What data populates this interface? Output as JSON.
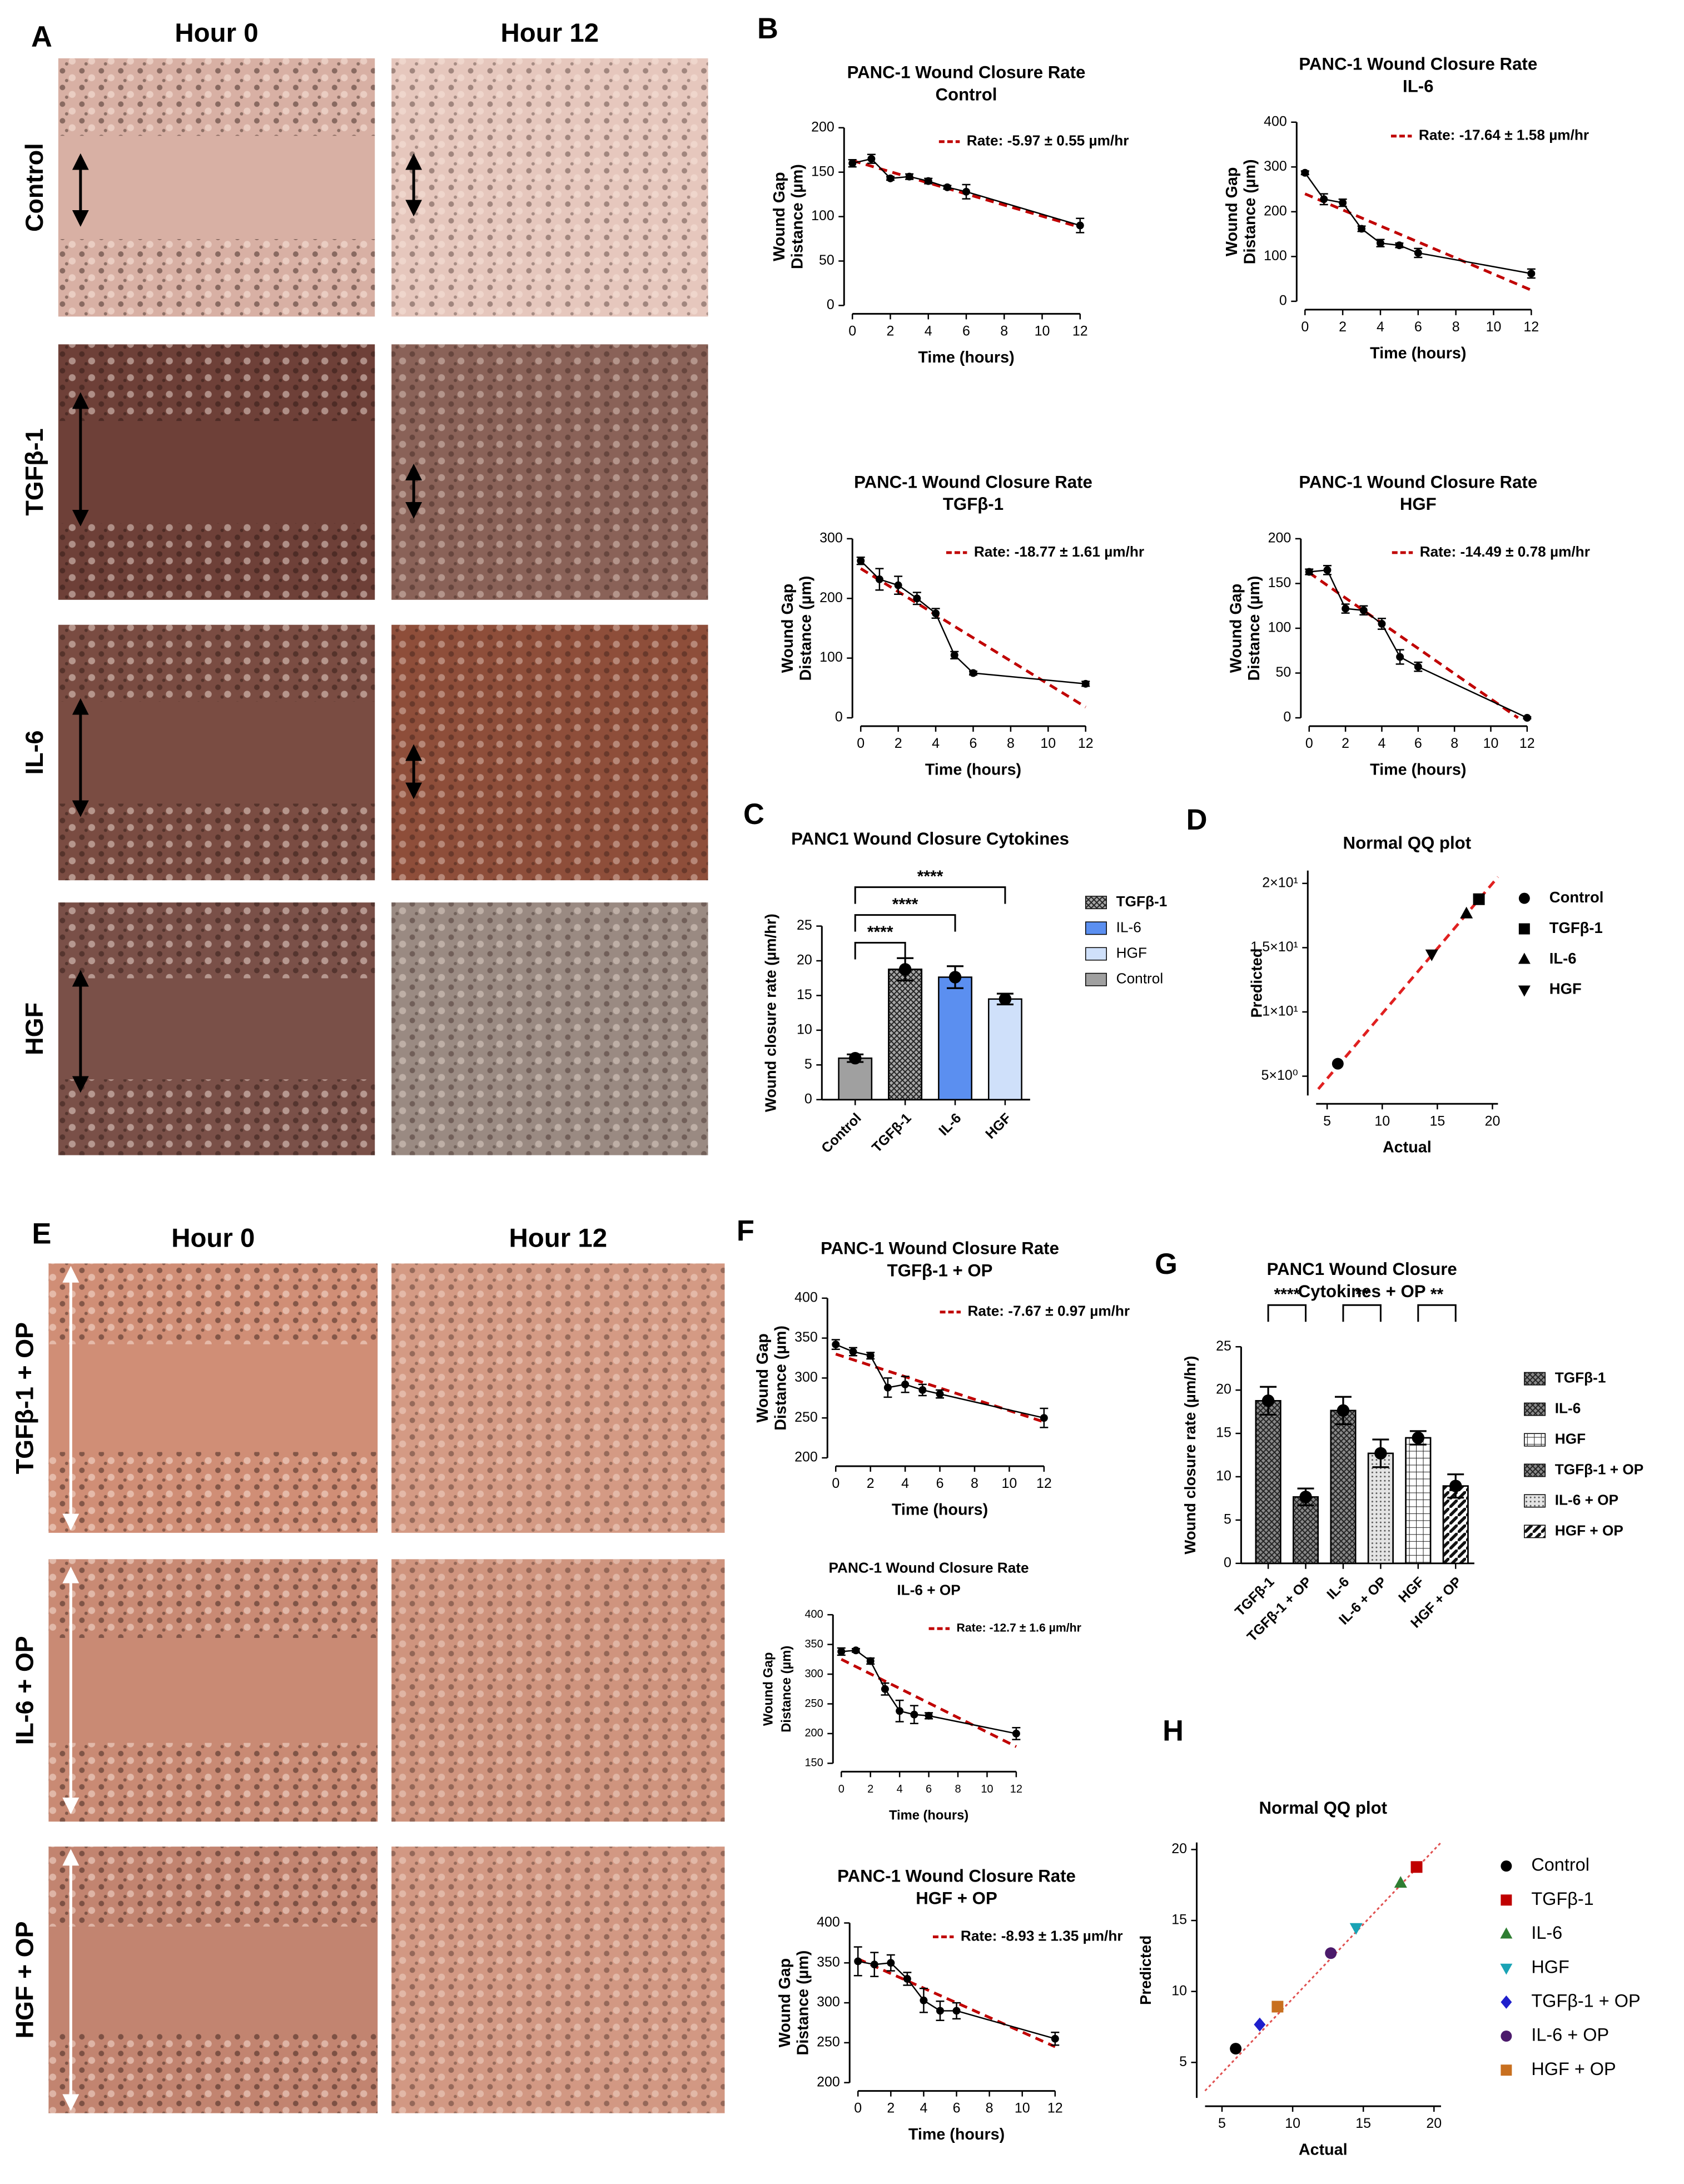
{
  "figure": {
    "panel_labels": [
      "A",
      "B",
      "C",
      "D",
      "E",
      "F",
      "G",
      "H"
    ],
    "panel_a": {
      "columns": [
        "Hour 0",
        "Hour 12"
      ],
      "rows": [
        "Control",
        "TGFβ-1",
        "IL-6",
        "HGF"
      ]
    },
    "panel_e": {
      "columns": [
        "Hour 0",
        "Hour 12"
      ],
      "rows": [
        "TGFβ-1 + OP",
        "IL-6 + OP",
        "HGF + OP"
      ]
    }
  },
  "chart_data": [
    {
      "type": "line",
      "title": "PANC-1 Wound Closure Rate",
      "subtitle": "Control",
      "x": [
        0,
        1,
        2,
        3,
        4,
        5,
        6,
        12
      ],
      "values": [
        160,
        165,
        143,
        145,
        140,
        133,
        128,
        90
      ],
      "errors": [
        4,
        5,
        2,
        3,
        3,
        2,
        8,
        8
      ],
      "color": "#000000",
      "fit": {
        "x": [
          0,
          12
        ],
        "values": [
          163,
          88
        ]
      },
      "fit_color": "#c00000",
      "annotation": "Rate: -5.97 ± 0.55 µm/hr",
      "xlabel": "Time (hours)",
      "ylabel": [
        "Wound Gap",
        "Distance (µm)"
      ],
      "xlim": [
        0,
        12
      ],
      "xticks": [
        0,
        2,
        4,
        6,
        8,
        10,
        12
      ],
      "ylim": [
        0,
        200
      ],
      "yticks": [
        0,
        50,
        100,
        150,
        200
      ]
    },
    {
      "type": "line",
      "title": "PANC-1 Wound Closure Rate",
      "subtitle": "IL-6",
      "x": [
        0,
        1,
        2,
        3,
        4,
        5,
        6,
        12
      ],
      "values": [
        287,
        228,
        220,
        162,
        130,
        125,
        108,
        62
      ],
      "errors": [
        4,
        12,
        8,
        6,
        8,
        5,
        10,
        10
      ],
      "color": "#000000",
      "fit": {
        "x": [
          0,
          12
        ],
        "values": [
          240,
          25
        ]
      },
      "fit_color": "#c00000",
      "annotation": "Rate: -17.64 ± 1.58 µm/hr",
      "xlabel": "Time (hours)",
      "ylabel": [
        "Wound Gap",
        "Distance (µm)"
      ],
      "xlim": [
        0,
        12
      ],
      "xticks": [
        0,
        2,
        4,
        6,
        8,
        10,
        12
      ],
      "ylim": [
        0,
        400
      ],
      "yticks": [
        0,
        100,
        200,
        300,
        400
      ]
    },
    {
      "type": "line",
      "title": "PANC-1 Wound Closure Rate",
      "subtitle": "TGFβ-1",
      "x": [
        0,
        1,
        2,
        3,
        4,
        5,
        6,
        12
      ],
      "values": [
        263,
        232,
        222,
        200,
        175,
        105,
        75,
        57
      ],
      "errors": [
        6,
        18,
        15,
        10,
        8,
        6,
        3,
        4
      ],
      "color": "#000000",
      "fit": {
        "x": [
          0,
          12
        ],
        "values": [
          250,
          18
        ]
      },
      "fit_color": "#c00000",
      "annotation": "Rate: -18.77 ± 1.61 µm/hr",
      "xlabel": "Time (hours)",
      "ylabel": [
        "Wound Gap",
        "Distance (µm)"
      ],
      "xlim": [
        0,
        12
      ],
      "xticks": [
        0,
        2,
        4,
        6,
        8,
        10,
        12
      ],
      "ylim": [
        0,
        300
      ],
      "yticks": [
        0,
        100,
        200,
        300
      ]
    },
    {
      "type": "line",
      "title": "PANC-1 Wound Closure Rate",
      "subtitle": "HGF",
      "x": [
        0,
        1,
        2,
        3,
        4,
        5,
        6,
        12
      ],
      "values": [
        163,
        165,
        122,
        120,
        105,
        68,
        57,
        0
      ],
      "errors": [
        3,
        5,
        5,
        5,
        6,
        8,
        5,
        1
      ],
      "color": "#000000",
      "fit": {
        "x": [
          0,
          11.5
        ],
        "values": [
          162,
          0
        ]
      },
      "fit_color": "#c00000",
      "annotation": "Rate: -14.49 ± 0.78 µm/hr",
      "xlabel": "Time (hours)",
      "ylabel": [
        "Wound Gap",
        "Distance (µm)"
      ],
      "xlim": [
        0,
        12
      ],
      "xticks": [
        0,
        2,
        4,
        6,
        8,
        10,
        12
      ],
      "ylim": [
        0,
        200
      ],
      "yticks": [
        0,
        50,
        100,
        150,
        200
      ]
    },
    {
      "type": "bar",
      "title": "PANC1 Wound Closure Cytokines",
      "categories": [
        "Control",
        "TGFβ-1",
        "IL-6",
        "HGF"
      ],
      "values": [
        5.97,
        18.77,
        17.64,
        14.49
      ],
      "errors": [
        0.55,
        1.61,
        1.58,
        0.78
      ],
      "colors": [
        "#a0a0a0",
        "#a8a8a8",
        "#5b8ff0",
        "#cfe0fa"
      ],
      "patterns": [
        "solid",
        "crosshatch",
        "solid",
        "solid"
      ],
      "legend": [
        "TGFβ-1",
        "IL-6",
        "HGF",
        "Control"
      ],
      "significance": [
        {
          "from": 0,
          "to": 1,
          "label": "****"
        },
        {
          "from": 0,
          "to": 2,
          "label": "****"
        },
        {
          "from": 0,
          "to": 3,
          "label": "****"
        }
      ],
      "ylabel": "Wound closure rate (µm/hr)",
      "ylim": [
        0,
        25
      ],
      "yticks": [
        0,
        5,
        10,
        15,
        20,
        25
      ]
    },
    {
      "type": "scatter",
      "title": "Normal QQ plot",
      "xlabel": "Actual",
      "ylabel": "Predicted",
      "series": [
        {
          "name": "Control",
          "x": [
            5.97
          ],
          "values": [
            5.97
          ],
          "marker": "circle",
          "color": "#000000"
        },
        {
          "name": "TGFβ-1",
          "x": [
            18.77
          ],
          "values": [
            18.77
          ],
          "marker": "square",
          "color": "#000000"
        },
        {
          "name": "IL-6",
          "x": [
            17.64
          ],
          "values": [
            17.64
          ],
          "marker": "triangle-up",
          "color": "#000000"
        },
        {
          "name": "HGF",
          "x": [
            14.49
          ],
          "values": [
            14.49
          ],
          "marker": "triangle-down",
          "color": "#000000"
        }
      ],
      "fit": {
        "x": [
          4.2,
          20.5
        ],
        "values": [
          4,
          20.5
        ]
      },
      "fit_color": "#e02020",
      "xlim": [
        4,
        20.5
      ],
      "xticks": [
        5,
        10,
        15,
        20
      ],
      "ylim": [
        3.5,
        21
      ],
      "yticks": [
        {
          "value": 5,
          "label": "5×10⁰"
        },
        {
          "value": 10,
          "label": "1×10¹"
        },
        {
          "value": 15,
          "label": "1.5×10¹"
        },
        {
          "value": 20,
          "label": "2×10¹"
        }
      ]
    },
    {
      "type": "line",
      "title": "PANC-1 Wound Closure Rate",
      "subtitle": "TGFβ-1 + OP",
      "x": [
        0,
        1,
        2,
        3,
        4,
        5,
        6,
        12
      ],
      "values": [
        342,
        333,
        328,
        288,
        292,
        285,
        280,
        250
      ],
      "errors": [
        6,
        5,
        4,
        12,
        10,
        7,
        5,
        12
      ],
      "color": "#000000",
      "fit": {
        "x": [
          0,
          12
        ],
        "values": [
          330,
          245
        ]
      },
      "fit_color": "#c00000",
      "annotation": "Rate: -7.67 ± 0.97 µm/hr",
      "xlabel": "Time (hours)",
      "ylabel": [
        "Wound Gap",
        "Distance (µm)"
      ],
      "xlim": [
        0,
        12
      ],
      "xticks": [
        0,
        2,
        4,
        6,
        8,
        10,
        12
      ],
      "ylim": [
        200,
        400
      ],
      "yticks": [
        200,
        250,
        300,
        350,
        400
      ]
    },
    {
      "type": "line",
      "title": "PANC-1 Wound Closure Rate",
      "subtitle": "IL-6 + OP",
      "x": [
        0,
        1,
        2,
        3,
        4,
        5,
        6,
        12
      ],
      "values": [
        338,
        340,
        322,
        275,
        238,
        232,
        230,
        200
      ],
      "errors": [
        6,
        3,
        5,
        10,
        18,
        15,
        5,
        10
      ],
      "color": "#000000",
      "fit": {
        "x": [
          0,
          12
        ],
        "values": [
          325,
          178
        ]
      },
      "fit_color": "#c00000",
      "annotation": "Rate: -12.7 ± 1.6 µm/hr",
      "xlabel": "Time (hours)",
      "ylabel": [
        "Wound Gap",
        "Distance (µm)"
      ],
      "xlim": [
        0,
        12
      ],
      "xticks": [
        0,
        2,
        4,
        6,
        8,
        10,
        12
      ],
      "ylim": [
        150,
        400
      ],
      "yticks": [
        150,
        200,
        250,
        300,
        350,
        400
      ]
    },
    {
      "type": "line",
      "title": "PANC-1 Wound Closure Rate",
      "subtitle": "HGF + OP",
      "x": [
        0,
        1,
        2,
        3,
        4,
        5,
        6,
        12
      ],
      "values": [
        352,
        348,
        350,
        330,
        303,
        290,
        290,
        255
      ],
      "errors": [
        18,
        15,
        10,
        8,
        15,
        12,
        10,
        8
      ],
      "color": "#000000",
      "fit": {
        "x": [
          0,
          12
        ],
        "values": [
          355,
          245
        ]
      },
      "fit_color": "#c00000",
      "annotation": "Rate: -8.93 ± 1.35 µm/hr",
      "xlabel": "Time (hours)",
      "ylabel": [
        "Wound Gap",
        "Distance (µm)"
      ],
      "xlim": [
        0,
        12
      ],
      "xticks": [
        0,
        2,
        4,
        6,
        8,
        10,
        12
      ],
      "ylim": [
        200,
        400
      ],
      "yticks": [
        200,
        250,
        300,
        350,
        400
      ]
    },
    {
      "type": "bar",
      "title": "PANC1 Wound Closure",
      "subtitle": "Cytokines + OP",
      "categories": [
        "TGFβ-1",
        "TGFβ-1 + OP",
        "IL-6",
        "IL-6 + OP",
        "HGF",
        "HGF + OP"
      ],
      "values": [
        18.77,
        7.67,
        17.64,
        12.7,
        14.49,
        8.93
      ],
      "errors": [
        1.61,
        0.97,
        1.58,
        1.6,
        0.78,
        1.35
      ],
      "colors": [
        "#8a8a8a",
        "#8a8a8a",
        "#8a8a8a",
        "#e4e4e4",
        "#ffffff",
        "#ffffff"
      ],
      "patterns": [
        "crosshatch",
        "crosshatch",
        "crosshatch",
        "dots",
        "grid",
        "diagonal"
      ],
      "legend": [
        "TGFβ-1",
        "IL-6",
        "HGF",
        "TGFβ-1 + OP",
        "IL-6 + OP",
        "HGF + OP"
      ],
      "significance": [
        {
          "from": 0,
          "to": 1,
          "label": "****"
        },
        {
          "from": 2,
          "to": 3,
          "label": "**"
        },
        {
          "from": 4,
          "to": 5,
          "label": "**"
        }
      ],
      "ylabel": "Wound closure rate (µm/hr)",
      "ylim": [
        0,
        25
      ],
      "yticks": [
        0,
        5,
        10,
        15,
        20,
        25
      ]
    },
    {
      "type": "scatter",
      "title": "Normal QQ plot",
      "xlabel": "Actual",
      "ylabel": "Predicted",
      "series": [
        {
          "name": "Control",
          "x": [
            5.97
          ],
          "values": [
            5.97
          ],
          "marker": "circle",
          "color": "#000000"
        },
        {
          "name": "TGFβ-1",
          "x": [
            18.77
          ],
          "values": [
            18.77
          ],
          "marker": "square",
          "color": "#c00000"
        },
        {
          "name": "IL-6",
          "x": [
            17.64
          ],
          "values": [
            17.64
          ],
          "marker": "triangle-up",
          "color": "#2e7d32"
        },
        {
          "name": "HGF",
          "x": [
            14.49
          ],
          "values": [
            14.49
          ],
          "marker": "triangle-down",
          "color": "#1aa3b5"
        },
        {
          "name": "TGFβ-1 + OP",
          "x": [
            7.67
          ],
          "values": [
            7.67
          ],
          "marker": "diamond",
          "color": "#1f1fcc"
        },
        {
          "name": "IL-6 + OP",
          "x": [
            12.7
          ],
          "values": [
            12.7
          ],
          "marker": "circle",
          "color": "#4b1a6b"
        },
        {
          "name": "HGF + OP",
          "x": [
            8.93
          ],
          "values": [
            8.93
          ],
          "marker": "square",
          "color": "#c87020"
        }
      ],
      "fit": {
        "x": [
          3.8,
          20.5
        ],
        "values": [
          3,
          20.5
        ]
      },
      "fit_color": "#e05050",
      "xlim": [
        3.8,
        20.5
      ],
      "xticks": [
        5,
        10,
        15,
        20
      ],
      "ylim": [
        2.5,
        20.5
      ],
      "yticks": [
        5,
        10,
        15,
        20
      ]
    }
  ]
}
